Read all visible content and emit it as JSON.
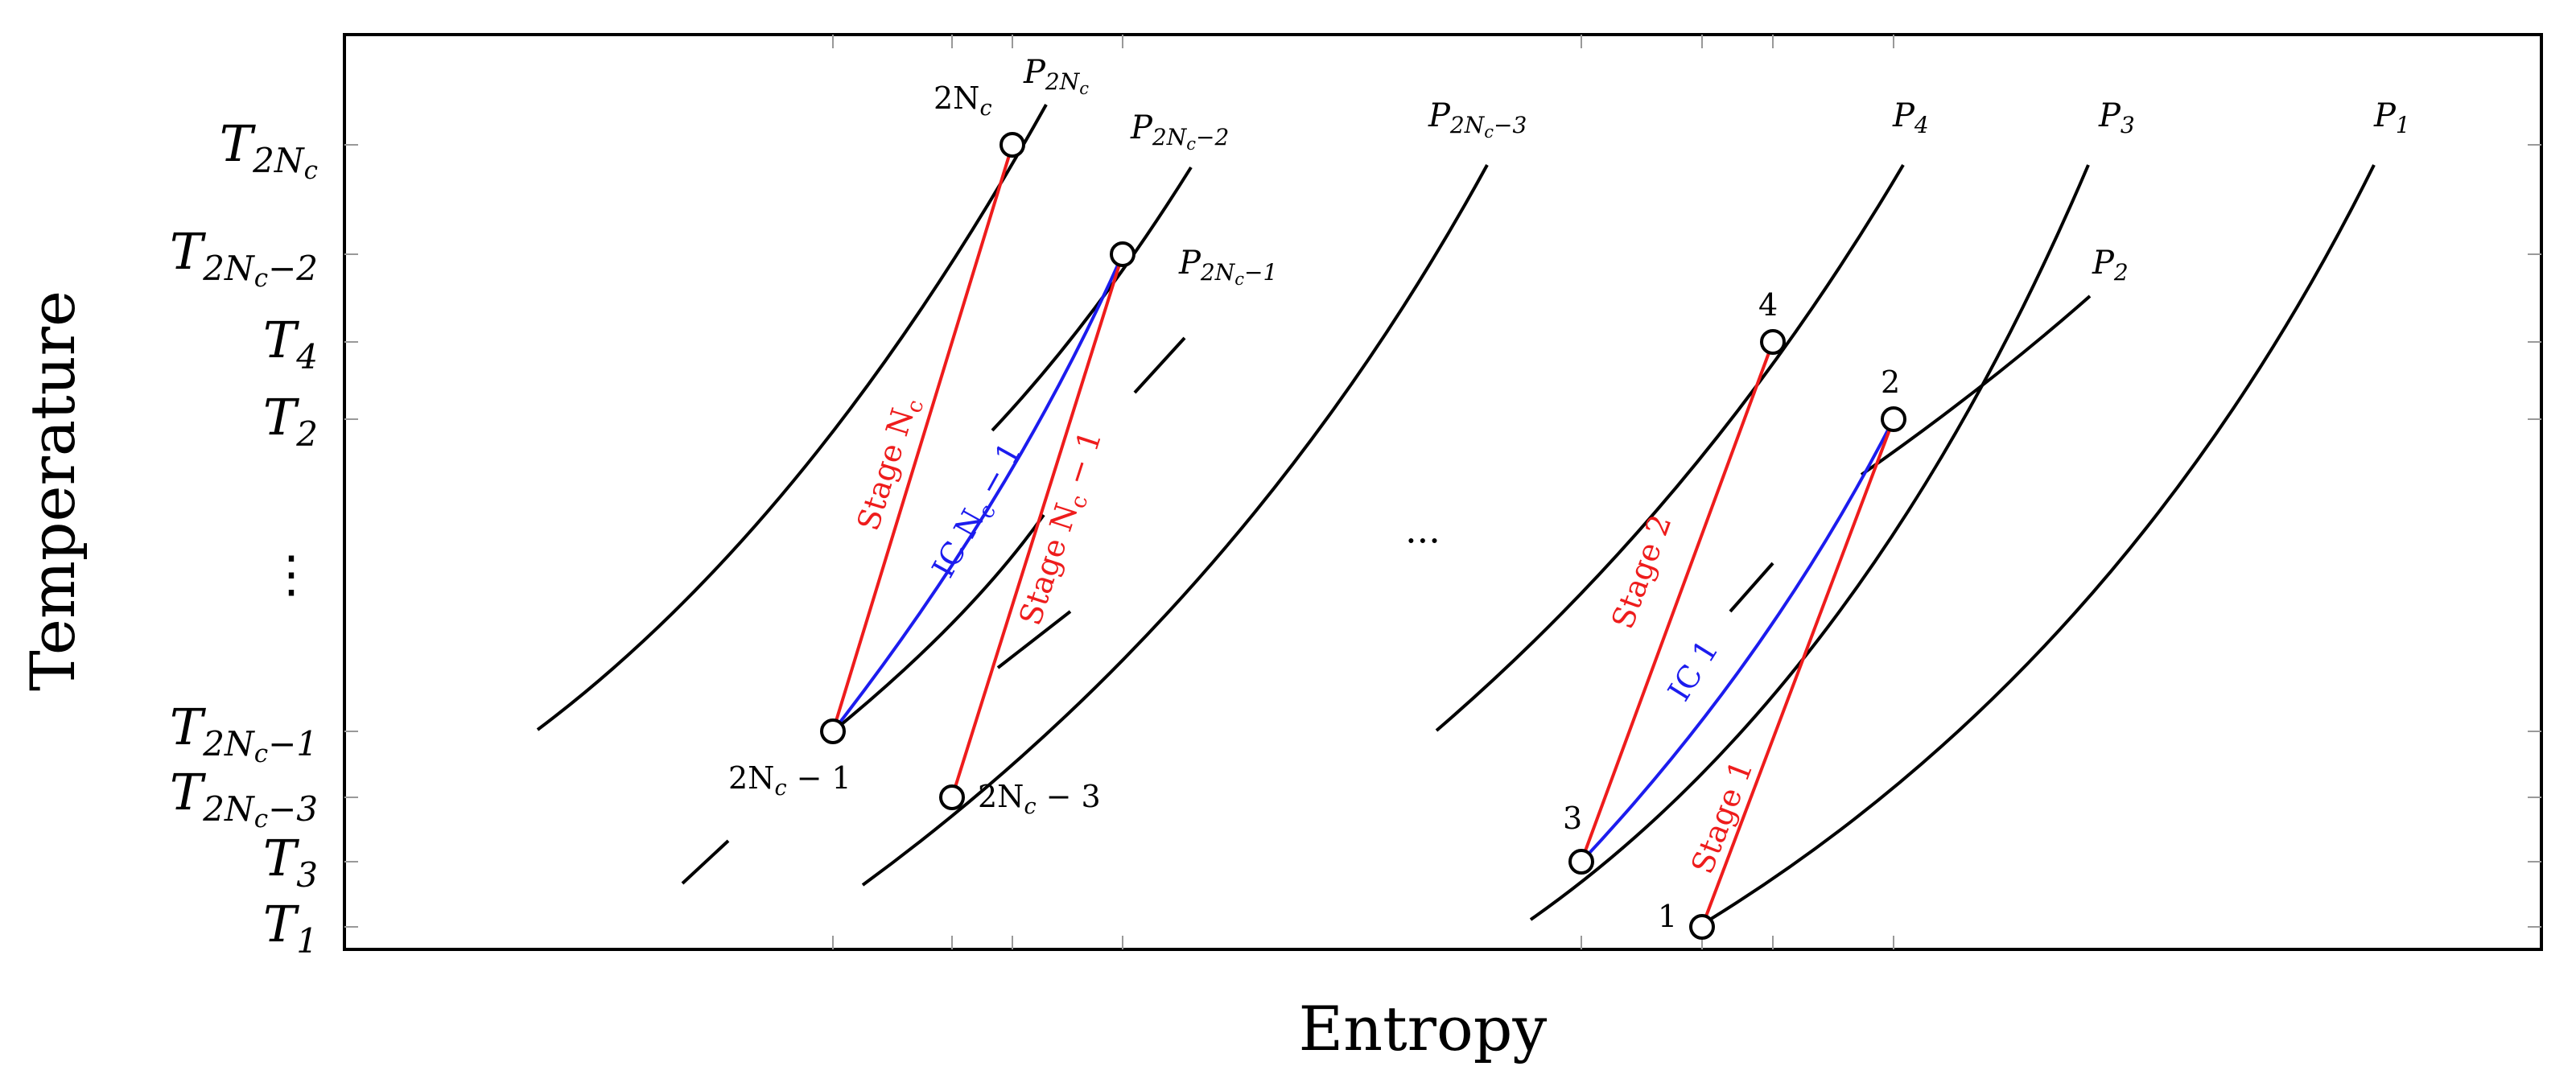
{
  "axes": {
    "x_title": "Entropy",
    "y_title": "Temperature"
  },
  "y_ticks": [
    {
      "main": "T",
      "sub": "2N",
      "subsub": "c",
      "tail": ""
    },
    {
      "main": "T",
      "sub": "2N",
      "subsub": "c",
      "tail": "−2"
    },
    {
      "main": "T",
      "sub": "4",
      "subsub": "",
      "tail": ""
    },
    {
      "main": "T",
      "sub": "2",
      "subsub": "",
      "tail": ""
    },
    {
      "main": "⋮",
      "sub": "",
      "subsub": "",
      "tail": ""
    },
    {
      "main": "T",
      "sub": "2N",
      "subsub": "c",
      "tail": "−1"
    },
    {
      "main": "T",
      "sub": "2N",
      "subsub": "c",
      "tail": "−3"
    },
    {
      "main": "T",
      "sub": "3",
      "subsub": "",
      "tail": ""
    },
    {
      "main": "T",
      "sub": "1",
      "subsub": "",
      "tail": ""
    }
  ],
  "isobars": [
    {
      "main": "P",
      "sub": "2N",
      "subsub": "c",
      "tail": ""
    },
    {
      "main": "P",
      "sub": "2N",
      "subsub": "c",
      "tail": "−2"
    },
    {
      "main": "P",
      "sub": "2N",
      "subsub": "c",
      "tail": "−1"
    },
    {
      "main": "P",
      "sub": "2N",
      "subsub": "c",
      "tail": "−3"
    },
    {
      "main": "P",
      "sub": "4",
      "subsub": "",
      "tail": ""
    },
    {
      "main": "P",
      "sub": "3",
      "subsub": "",
      "tail": ""
    },
    {
      "main": "P",
      "sub": "2",
      "subsub": "",
      "tail": ""
    },
    {
      "main": "P",
      "sub": "1",
      "subsub": "",
      "tail": ""
    }
  ],
  "states": {
    "s1": "1",
    "s2": "2",
    "s3": "3",
    "s4": "4",
    "s2nc": {
      "main": "2N",
      "sub": "c",
      "tail": ""
    },
    "s2nc_minus1": {
      "main": "2N",
      "sub": "c",
      "tail": " − 1"
    },
    "s2nc_minus3": {
      "main": "2N",
      "sub": "c",
      "tail": " − 3"
    }
  },
  "processes": {
    "stage1": "Stage 1",
    "stage2": "Stage 2",
    "ic1": "IC 1",
    "stage_nc": {
      "main": "Stage N",
      "sub": "c",
      "tail": ""
    },
    "stage_nc_minus1": {
      "main": "Stage N",
      "sub": "c",
      "tail": " − 1"
    },
    "ic_nc_minus1": {
      "main": "IC N",
      "sub": "c",
      "tail": " − 1"
    }
  },
  "ellipsis": "···",
  "colors": {
    "compression": "#ee1c1c",
    "intercooling": "#1c1cee",
    "isobar": "#000000"
  }
}
